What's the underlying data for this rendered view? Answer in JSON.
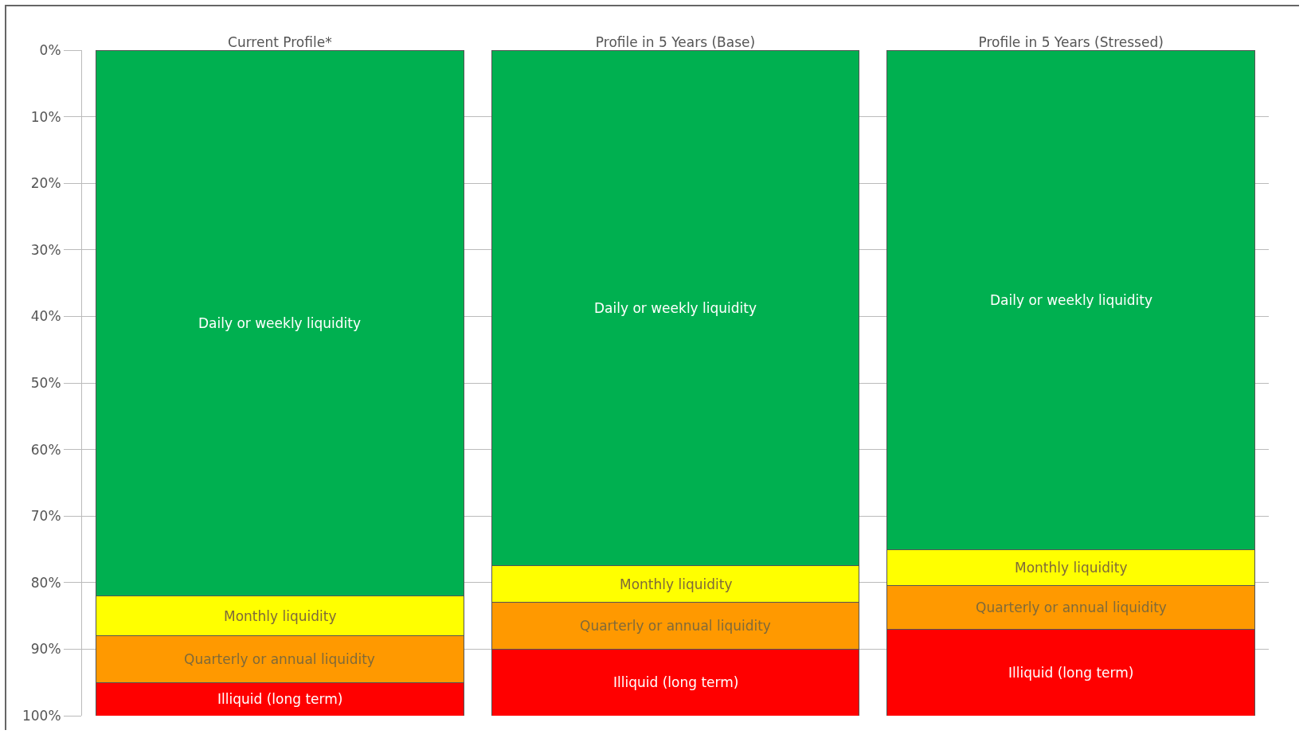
{
  "chart_data": {
    "type": "bar",
    "stacked": true,
    "categories": [
      "Current Profile*",
      "Profile in 5 Years (Base)",
      "Profile in 5 Years (Stressed)"
    ],
    "series": [
      {
        "name": "Daily or weekly liquidity",
        "color": "#00b050",
        "values": [
          82,
          77.5,
          75
        ]
      },
      {
        "name": "Monthly liquidity",
        "color": "#ffff00",
        "values": [
          6,
          5.5,
          5.5
        ]
      },
      {
        "name": "Quarterly or annual liquidity",
        "color": "#ff9900",
        "values": [
          7,
          7,
          6.5
        ]
      },
      {
        "name": "Illiquid (long term)",
        "color": "#ff0000",
        "values": [
          5,
          10,
          13
        ]
      }
    ],
    "ylim": [
      100,
      0
    ],
    "yticks": [
      {
        "value": 0,
        "label": "0%"
      },
      {
        "value": 10,
        "label": "10%"
      },
      {
        "value": 20,
        "label": "20%"
      },
      {
        "value": 30,
        "label": "30%"
      },
      {
        "value": 40,
        "label": "40%"
      },
      {
        "value": 50,
        "label": "50%"
      },
      {
        "value": 60,
        "label": "60%"
      },
      {
        "value": 70,
        "label": "70%"
      },
      {
        "value": 80,
        "label": "80%"
      },
      {
        "value": 90,
        "label": "90%"
      },
      {
        "value": 100,
        "label": "100%"
      }
    ],
    "grid": "y",
    "legend": false
  }
}
